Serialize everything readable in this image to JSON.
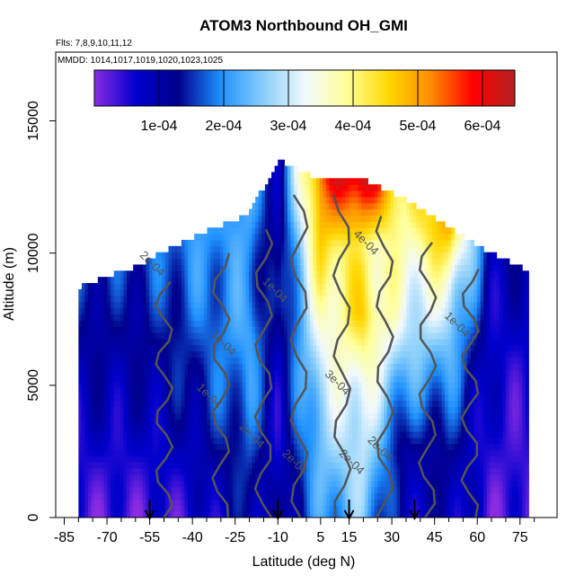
{
  "chart_data": {
    "type": "heatmap",
    "title": "ATOM3 Northbound OH_GMI",
    "subtitle_flights": "Flts: 7,8,9,10,11,12",
    "subtitle_dates": "MMDD: 1014,1017,1019,1020,1023,1025",
    "xlabel": "Latitude (deg N)",
    "ylabel": "Altitude (m)",
    "xlim": [
      -88,
      88
    ],
    "ylim": [
      0,
      17600
    ],
    "x_ticks": [
      "-85",
      "-70",
      "-55",
      "-40",
      "-25",
      "-10",
      "5",
      "15",
      "30",
      "45",
      "60",
      "75"
    ],
    "x_tick_values": [
      -85,
      -70,
      -55,
      -40,
      -25,
      -10,
      5,
      15,
      30,
      45,
      60,
      75
    ],
    "y_ticks": [
      "0",
      "5000",
      "10000",
      "15000"
    ],
    "y_tick_values": [
      0,
      5000,
      10000,
      15000
    ],
    "colorbar": {
      "range": [
        0,
        0.00065
      ],
      "tick_labels": [
        "1e-04",
        "2e-04",
        "3e-04",
        "4e-04",
        "5e-04",
        "6e-04"
      ],
      "tick_values": [
        0.0001,
        0.0002,
        0.0003,
        0.0004,
        0.0005,
        0.0006
      ],
      "colors": [
        "#8a2be2",
        "#0000cd",
        "#00008b",
        "#1e90ff",
        "#87cefa",
        "#f0f8ff",
        "#ffff99",
        "#ffd700",
        "#ff8c00",
        "#ff0000",
        "#b22222"
      ]
    },
    "contour_labels": [
      "2e-04",
      "4e-04",
      "1e-04",
      "1e-04",
      "1e-04",
      "3e-04",
      "2e-04",
      "2e-04",
      "2e-04",
      "2e-04",
      "1e-04"
    ],
    "arrow_latitudes": [
      -55,
      -10,
      15,
      38
    ],
    "profiles": [
      {
        "lat": -60,
        "top": 9500,
        "values": [
          3e-05,
          5e-05,
          8e-05,
          0.0001,
          0.00012,
          0.00015
        ]
      },
      {
        "lat": -40,
        "top": 10600,
        "values": [
          5e-05,
          8e-05,
          0.00012,
          0.00015,
          0.00018,
          0.0002
        ]
      },
      {
        "lat": -20,
        "top": 11500,
        "values": [
          0.00012,
          0.00016,
          0.0002,
          0.00022,
          0.0002,
          0.00022
        ]
      },
      {
        "lat": -10,
        "top": 13500,
        "values": [
          8e-05,
          6e-05,
          8e-05,
          0.0001,
          8e-05,
          0.0001
        ]
      },
      {
        "lat": 5,
        "top": 12800,
        "values": [
          0.0002,
          0.00025,
          0.0003,
          0.00035,
          0.00045,
          0.00055
        ]
      },
      {
        "lat": 20,
        "top": 12800,
        "values": [
          0.00025,
          0.0003,
          0.00035,
          0.00045,
          0.0004,
          0.00065
        ]
      },
      {
        "lat": 35,
        "top": 12000,
        "values": [
          8e-05,
          0.0001,
          0.0002,
          0.0003,
          0.00035,
          0.0004
        ]
      },
      {
        "lat": 50,
        "top": 11000,
        "values": [
          0.0001,
          0.00012,
          0.00018,
          0.00025,
          0.00035,
          0.0005
        ]
      },
      {
        "lat": 65,
        "top": 10000,
        "values": [
          3e-05,
          4e-05,
          5e-05,
          6e-05,
          8e-05,
          0.0001
        ]
      }
    ]
  }
}
